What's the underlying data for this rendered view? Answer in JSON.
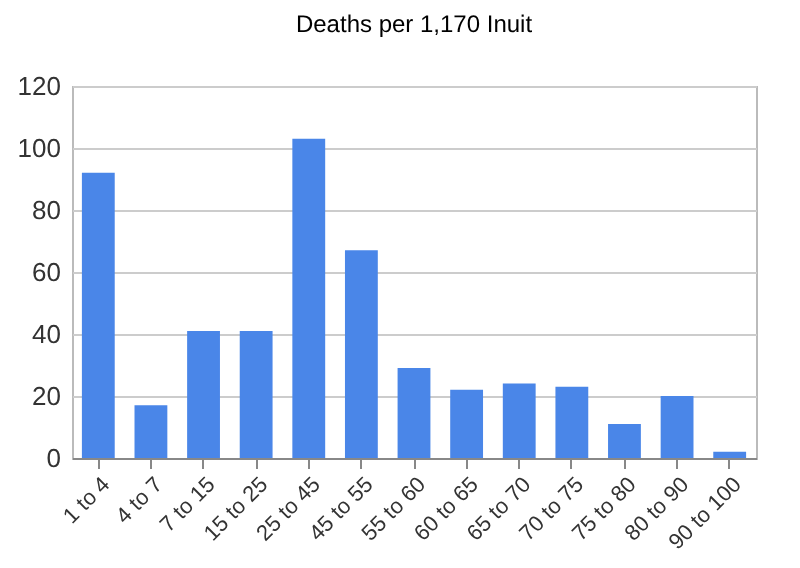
{
  "chart_data": {
    "type": "bar",
    "title": "Deaths per 1,170 Inuit",
    "categories": [
      "1 to 4",
      "4 to 7",
      "7 to 15",
      "15 to 25",
      "25 to 45",
      "45 to 55",
      "55 to 60",
      "60 to 65",
      "65 to 70",
      "70 to 75",
      "75 to 80",
      "80 to 90",
      "90 to 100"
    ],
    "values": [
      92,
      17,
      41,
      41,
      103,
      67,
      29,
      22,
      24,
      23,
      11,
      20,
      2
    ],
    "color": "#4a86e8",
    "ylim": [
      0,
      120
    ],
    "yticks": [
      0,
      20,
      40,
      60,
      80,
      100,
      120
    ],
    "grid": "y"
  }
}
